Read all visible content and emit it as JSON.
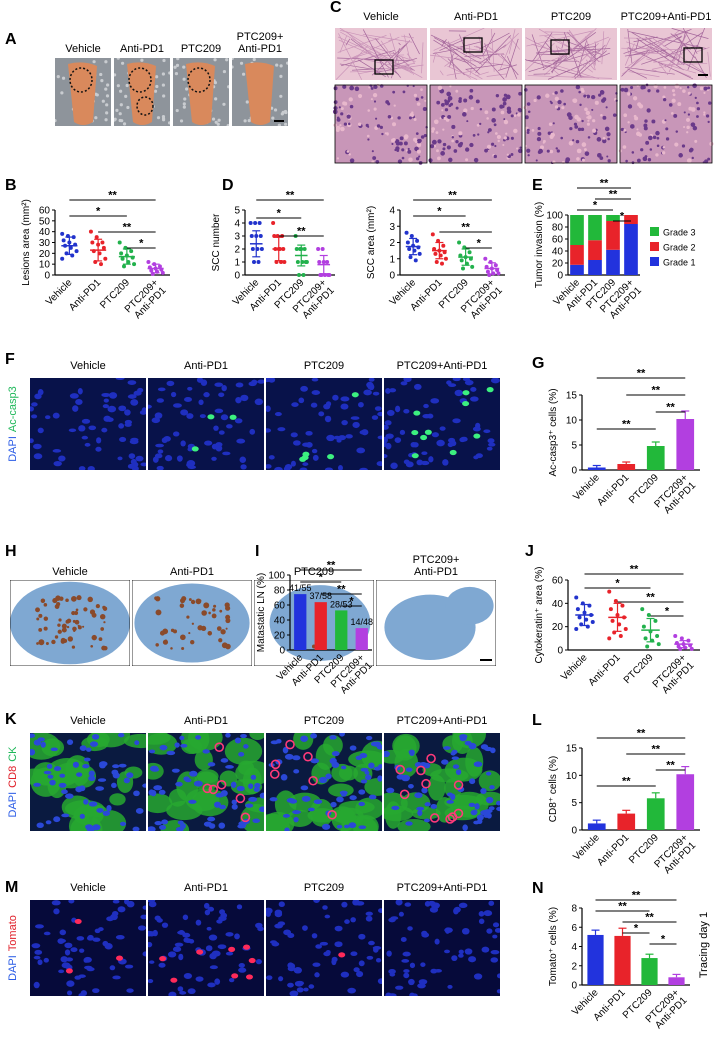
{
  "image_panels": [
    {
      "letter": "A",
      "labels": [
        "Vehicle",
        "Anti-PD1",
        "PTC209",
        "PTC209+\nAnti-PD1"
      ]
    },
    {
      "letter": "C",
      "labels": [
        "Vehicle",
        "Anti-PD1",
        "PTC209",
        "PTC209+Anti-PD1"
      ]
    },
    {
      "letter": "F",
      "labels": [
        "Vehicle",
        "Anti-PD1",
        "PTC209",
        "PTC209+Anti-PD1"
      ],
      "stain": [
        {
          "text": "DAPI",
          "color": "#2b5ce6"
        },
        {
          "text": "Ac-casp3",
          "color": "#1fb85a"
        }
      ]
    },
    {
      "letter": "H",
      "labels": [
        "Vehicle",
        "Anti-PD1",
        "PTC209",
        "PTC209+\nAnti-PD1"
      ]
    },
    {
      "letter": "K",
      "labels": [
        "Vehicle",
        "Anti-PD1",
        "PTC209",
        "PTC209+Anti-PD1"
      ],
      "stain": [
        {
          "text": "DAPI",
          "color": "#2b5ce6"
        },
        {
          "text": "CD8",
          "color": "#e0202a"
        },
        {
          "text": "CK",
          "color": "#1fb85a"
        }
      ]
    },
    {
      "letter": "M",
      "labels": [
        "Vehicle",
        "Anti-PD1",
        "PTC209",
        "PTC209+Anti-PD1"
      ],
      "stain": [
        {
          "text": "DAPI",
          "color": "#2b5ce6"
        },
        {
          "text": "Tomato",
          "color": "#e0202a"
        }
      ]
    }
  ],
  "chart_data": [
    {
      "type": "dot",
      "letter": "B",
      "y_label": "Lesions area (mm²)",
      "categories": [
        "Vehicle",
        "Anti-PD1",
        "PTC209",
        "PTC209+\nAnti-PD1"
      ],
      "colors": [
        "#2233cc",
        "#e8232a",
        "#22b14c",
        "#b23fe0"
      ],
      "groups": [
        {
          "values": [
            38,
            36,
            35,
            32,
            30,
            28,
            27,
            25,
            22,
            20,
            18,
            15
          ],
          "mean": 27,
          "sd": 8
        },
        {
          "values": [
            40,
            35,
            30,
            30,
            28,
            25,
            22,
            20,
            15,
            12,
            10
          ],
          "mean": 23,
          "sd": 10
        },
        {
          "values": [
            30,
            25,
            22,
            20,
            18,
            16,
            15,
            12,
            10,
            8
          ],
          "mean": 17,
          "sd": 7
        },
        {
          "values": [
            12,
            10,
            8,
            7,
            6,
            5,
            4,
            3,
            2,
            1
          ],
          "mean": 6,
          "sd": 4
        }
      ],
      "ylim": [
        0,
        60
      ],
      "yticks": [
        0,
        10,
        20,
        30,
        40,
        50,
        60
      ],
      "annotations": [
        {
          "text": "**",
          "from": "Vehicle",
          "to": "PTC209+\nAnti-PD1"
        },
        {
          "text": "*",
          "from": "Vehicle",
          "to": "PTC209"
        },
        {
          "text": "**",
          "from": "Anti-PD1",
          "to": "PTC209+\nAnti-PD1"
        },
        {
          "text": "*",
          "from": "PTC209",
          "to": "PTC209+\nAnti-PD1"
        }
      ]
    },
    {
      "type": "dot",
      "letter": "D",
      "y_label": "SCC number",
      "categories": [
        "Vehicle",
        "Anti-PD1",
        "PTC209",
        "PTC209+\nAnti-PD1"
      ],
      "colors": [
        "#2233cc",
        "#e8232a",
        "#22b14c",
        "#b23fe0"
      ],
      "groups": [
        {
          "values": [
            4,
            4,
            4,
            3,
            3,
            3,
            2,
            2,
            2,
            1,
            1
          ],
          "mean": 2.4,
          "sd": 1.0
        },
        {
          "values": [
            4,
            3,
            3,
            3,
            2,
            2,
            2,
            2,
            1,
            1,
            1
          ],
          "mean": 2.0,
          "sd": 0.9
        },
        {
          "values": [
            3,
            2,
            2,
            2,
            2,
            1,
            1,
            1,
            1,
            0,
            0
          ],
          "mean": 1.5,
          "sd": 0.8
        },
        {
          "values": [
            2,
            2,
            1,
            1,
            1,
            0,
            0,
            0,
            0,
            0
          ],
          "mean": 0.8,
          "sd": 0.7
        }
      ],
      "ylim": [
        0,
        5
      ],
      "yticks": [
        0,
        1,
        2,
        3,
        4,
        5
      ],
      "annotations": [
        {
          "text": "**",
          "from": "Vehicle",
          "to": "PTC209+\nAnti-PD1"
        },
        {
          "text": "*",
          "from": "Vehicle",
          "to": "PTC209"
        },
        {
          "text": "**",
          "from": "Anti-PD1",
          "to": "PTC209+\nAnti-PD1"
        }
      ]
    },
    {
      "type": "dot",
      "y_label": "SCC area (mm²)",
      "categories": [
        "Vehicle",
        "Anti-PD1",
        "PTC209",
        "PTC209+\nAnti-PD1"
      ],
      "colors": [
        "#2233cc",
        "#e8232a",
        "#22b14c",
        "#b23fe0"
      ],
      "groups": [
        {
          "values": [
            2.6,
            2.4,
            2.1,
            2.0,
            1.8,
            1.7,
            1.6,
            1.5,
            1.3,
            1.1,
            0.9
          ],
          "mean": 1.75,
          "sd": 0.5
        },
        {
          "values": [
            2.5,
            2.1,
            1.8,
            1.6,
            1.5,
            1.4,
            1.3,
            1.2,
            1.0,
            0.8,
            0.7
          ],
          "mean": 1.5,
          "sd": 0.5
        },
        {
          "values": [
            2.0,
            1.7,
            1.4,
            1.2,
            1.1,
            1.0,
            0.9,
            0.7,
            0.5,
            0.4
          ],
          "mean": 1.1,
          "sd": 0.5
        },
        {
          "values": [
            1.0,
            0.8,
            0.6,
            0.5,
            0.4,
            0.3,
            0.2,
            0.1,
            0.1,
            0.0
          ],
          "mean": 0.4,
          "sd": 0.35
        }
      ],
      "ylim": [
        0,
        4
      ],
      "yticks": [
        0,
        1,
        2,
        3,
        4
      ],
      "annotations": [
        {
          "text": "**",
          "from": "Vehicle",
          "to": "PTC209+\nAnti-PD1"
        },
        {
          "text": "*",
          "from": "Vehicle",
          "to": "PTC209"
        },
        {
          "text": "**",
          "from": "Anti-PD1",
          "to": "PTC209+\nAnti-PD1"
        },
        {
          "text": "*",
          "from": "PTC209",
          "to": "PTC209+\nAnti-PD1"
        }
      ]
    },
    {
      "type": "stacked_bar",
      "letter": "E",
      "y_label": "Tumor invasion (%)",
      "categories": [
        "Vehicle",
        "Anti-PD1",
        "PTC209",
        "PTC209+\nAnti-PD1"
      ],
      "series": [
        {
          "name": "Grade 1",
          "color": "#2233dd",
          "values": [
            17,
            25,
            42,
            85
          ]
        },
        {
          "name": "Grade 2",
          "color": "#e8232a",
          "values": [
            33,
            33,
            48,
            15
          ]
        },
        {
          "name": "Grade 3",
          "color": "#22b83a",
          "values": [
            50,
            42,
            10,
            0
          ]
        }
      ],
      "ylim": [
        0,
        100
      ],
      "yticks": [
        0,
        20,
        40,
        60,
        80,
        100
      ],
      "legend": "right",
      "annotations": [
        {
          "text": "**",
          "from": "Vehicle",
          "to": "PTC209+\nAnti-PD1"
        },
        {
          "text": "**",
          "from": "Anti-PD1",
          "to": "PTC209+\nAnti-PD1"
        },
        {
          "text": "*",
          "from": "Vehicle",
          "to": "PTC209"
        },
        {
          "text": "*",
          "from": "PTC209",
          "to": "PTC209+\nAnti-PD1"
        }
      ]
    },
    {
      "type": "bar",
      "letter": "G",
      "y_label": "Ac-casp3⁺ cells (%)",
      "categories": [
        "Vehicle",
        "Anti-PD1",
        "PTC209",
        "PTC209+\nAnti-PD1"
      ],
      "colors": [
        "#2233dd",
        "#e8232a",
        "#22b83a",
        "#b23fe0"
      ],
      "values": [
        0.5,
        1.2,
        4.8,
        10.2
      ],
      "errors": [
        0.4,
        0.4,
        0.8,
        1.6
      ],
      "ylim": [
        0,
        15
      ],
      "yticks": [
        0,
        5,
        10,
        15
      ],
      "annotations": [
        {
          "text": "**",
          "from": "Vehicle",
          "to": "PTC209+\nAnti-PD1"
        },
        {
          "text": "**",
          "from": "Anti-PD1",
          "to": "PTC209+\nAnti-PD1"
        },
        {
          "text": "**",
          "from": "PTC209",
          "to": "PTC209+\nAnti-PD1"
        },
        {
          "text": "**",
          "from": "Vehicle",
          "to": "PTC209"
        }
      ]
    },
    {
      "type": "bar",
      "letter": "I",
      "y_label": "Matastatic LN (%)",
      "categories": [
        "Vehicle",
        "Anti-PD1",
        "PTC209",
        "PTC209+\nAnti-PD1"
      ],
      "colors": [
        "#2233dd",
        "#e8232a",
        "#22b83a",
        "#b23fe0"
      ],
      "values": [
        74.5,
        63.8,
        52.8,
        29.2
      ],
      "value_labels": [
        "41/55",
        "37/58",
        "28/53",
        "14/48"
      ],
      "ylim": [
        0,
        100
      ],
      "yticks": [
        0,
        20,
        40,
        60,
        80,
        100
      ],
      "annotations": [
        {
          "text": "**",
          "from": "Vehicle",
          "to": "PTC209+\nAnti-PD1"
        },
        {
          "text": "*",
          "from": "Vehicle",
          "to": "PTC209"
        },
        {
          "text": "**",
          "from": "Anti-PD1",
          "to": "PTC209+\nAnti-PD1"
        },
        {
          "text": "*",
          "from": "PTC209",
          "to": "PTC209+\nAnti-PD1"
        }
      ]
    },
    {
      "type": "dot",
      "letter": "J",
      "y_label": "Cytokeratin⁺ area (%)",
      "categories": [
        "Vehicle",
        "Anti-PD1",
        "PTC209",
        "PTC209+\nAnti-PD1"
      ],
      "colors": [
        "#2233cc",
        "#e8232a",
        "#22b14c",
        "#b23fe0"
      ],
      "groups": [
        {
          "values": [
            45,
            40,
            38,
            35,
            32,
            30,
            28,
            26,
            24,
            22,
            20,
            18
          ],
          "mean": 30,
          "sd": 9
        },
        {
          "values": [
            50,
            42,
            38,
            35,
            30,
            28,
            25,
            22,
            18,
            15,
            12,
            10
          ],
          "mean": 28,
          "sd": 12
        },
        {
          "values": [
            35,
            30,
            25,
            20,
            16,
            12,
            10,
            8,
            5,
            3
          ],
          "mean": 17,
          "sd": 10
        },
        {
          "values": [
            12,
            10,
            8,
            6,
            5,
            4,
            3,
            2,
            1,
            1
          ],
          "mean": 5,
          "sd": 3
        }
      ],
      "ylim": [
        0,
        60
      ],
      "yticks": [
        0,
        20,
        40,
        60
      ],
      "annotations": [
        {
          "text": "**",
          "from": "Vehicle",
          "to": "PTC209+\nAnti-PD1"
        },
        {
          "text": "*",
          "from": "Vehicle",
          "to": "PTC209"
        },
        {
          "text": "**",
          "from": "Anti-PD1",
          "to": "PTC209+\nAnti-PD1"
        },
        {
          "text": "*",
          "from": "PTC209",
          "to": "PTC209+\nAnti-PD1"
        }
      ]
    },
    {
      "type": "bar",
      "letter": "L",
      "y_label": "CD8⁺ cells (%)",
      "categories": [
        "Vehicle",
        "Anti-PD1",
        "PTC209",
        "PTC209+\nAnti-PD1"
      ],
      "colors": [
        "#2233dd",
        "#e8232a",
        "#22b83a",
        "#b23fe0"
      ],
      "values": [
        1.2,
        3.0,
        5.8,
        10.2
      ],
      "errors": [
        0.6,
        0.6,
        1.0,
        1.4
      ],
      "ylim": [
        0,
        15
      ],
      "yticks": [
        0,
        5,
        10,
        15
      ],
      "annotations": [
        {
          "text": "**",
          "from": "Vehicle",
          "to": "PTC209+\nAnti-PD1"
        },
        {
          "text": "**",
          "from": "Anti-PD1",
          "to": "PTC209+\nAnti-PD1"
        },
        {
          "text": "**",
          "from": "PTC209",
          "to": "PTC209+\nAnti-PD1"
        },
        {
          "text": "**",
          "from": "Vehicle",
          "to": "PTC209"
        }
      ]
    },
    {
      "type": "bar",
      "letter": "N",
      "y_label": "Tomato⁺ cells (%)",
      "side_label": "Tracing day 1",
      "categories": [
        "Vehicle",
        "Anti-PD1",
        "PTC209",
        "PTC209+\nAnti-PD1"
      ],
      "colors": [
        "#2233dd",
        "#e8232a",
        "#22b83a",
        "#b23fe0"
      ],
      "values": [
        5.2,
        5.1,
        2.8,
        0.8
      ],
      "errors": [
        0.5,
        0.8,
        0.4,
        0.3
      ],
      "ylim": [
        0,
        8
      ],
      "yticks": [
        0,
        2,
        4,
        6,
        8
      ],
      "annotations": [
        {
          "text": "**",
          "from": "Vehicle",
          "to": "PTC209+\nAnti-PD1"
        },
        {
          "text": "**",
          "from": "Vehicle",
          "to": "PTC209"
        },
        {
          "text": "**",
          "from": "Anti-PD1",
          "to": "PTC209+\nAnti-PD1"
        },
        {
          "text": "*",
          "from": "Anti-PD1",
          "to": "PTC209"
        },
        {
          "text": "*",
          "from": "PTC209",
          "to": "PTC209+\nAnti-PD1"
        }
      ]
    }
  ]
}
